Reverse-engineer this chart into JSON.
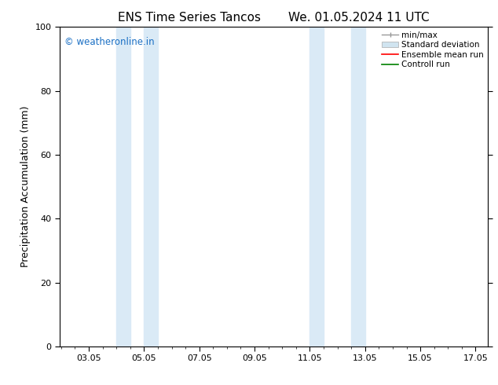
{
  "title_left": "ENS Time Series Tancos",
  "title_right": "We. 01.05.2024 11 UTC",
  "ylabel": "Precipitation Accumulation (mm)",
  "xlim": [
    2.0,
    17.5
  ],
  "ylim": [
    0,
    100
  ],
  "yticks": [
    0,
    20,
    40,
    60,
    80,
    100
  ],
  "xtick_positions": [
    3.05,
    5.05,
    7.05,
    9.05,
    11.05,
    13.05,
    15.05,
    17.05
  ],
  "xtick_labels": [
    "03.05",
    "05.05",
    "07.05",
    "09.05",
    "11.05",
    "13.05",
    "15.05",
    "17.05"
  ],
  "shaded_regions": [
    [
      4.05,
      4.55
    ],
    [
      5.05,
      5.55
    ],
    [
      11.05,
      11.55
    ],
    [
      12.55,
      13.05
    ]
  ],
  "shade_color": "#daeaf6",
  "watermark_text": "© weatheronline.in",
  "watermark_color": "#1a6fc4",
  "legend_items": [
    {
      "label": "min/max",
      "color": "#999999",
      "type": "errorbar"
    },
    {
      "label": "Standard deviation",
      "color": "#d0e4f0",
      "type": "bar"
    },
    {
      "label": "Ensemble mean run",
      "color": "red",
      "type": "line"
    },
    {
      "label": "Controll run",
      "color": "green",
      "type": "line"
    }
  ],
  "background_color": "#ffffff",
  "title_fontsize": 11,
  "tick_fontsize": 8,
  "ylabel_fontsize": 9,
  "watermark_fontsize": 8.5,
  "legend_fontsize": 7.5
}
